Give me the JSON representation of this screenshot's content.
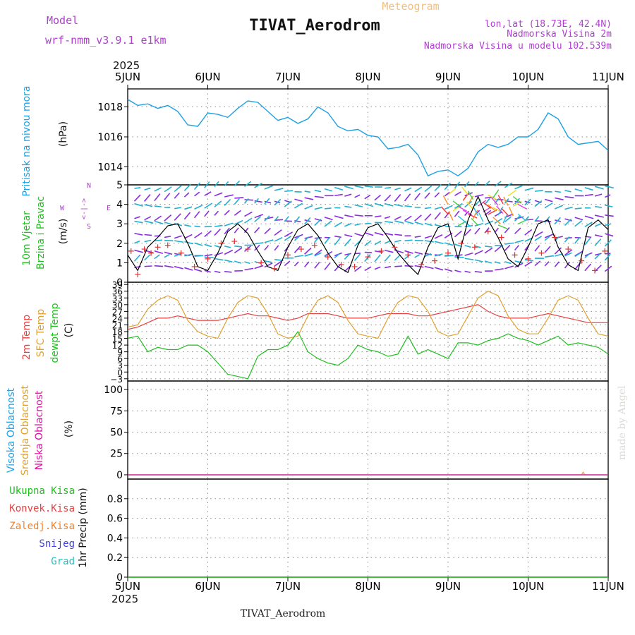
{
  "header": {
    "title": "TIVAT_Aerodrom",
    "subtitle": "Meteogram",
    "model_label": "Model",
    "model_name": "wrf-nmm_v3.9.1  e1km",
    "lonlat": "lon,lat (18.73E, 42.4N)",
    "elevation": "Nadmorska Visina 2m",
    "model_elevation": "Nadmorska Visina u modelu 102.539m",
    "year_top": "2025",
    "year_bottom": "2025",
    "footer_title": "TIVAT_Aerodrom",
    "watermark": "made by Angel"
  },
  "colors": {
    "pressure": "#1ea0e6",
    "temp2m": "#e84040",
    "sfc_temp": "#e0a030",
    "dewpoint": "#20c020",
    "gust": "#000000",
    "wind_marker": "#e03030",
    "cloud_high": "#1ea0e6",
    "cloud_mid": "#e0a030",
    "cloud_low": "#e010a0",
    "precip_total": "#20c020",
    "precip_conv": "#e84040",
    "precip_frz": "#f08030",
    "snow": "#4040e0",
    "graupel": "#20c0c0",
    "header_purple": "#b040d0",
    "subtitle_orange": "#f0c080"
  },
  "chart_data": [
    {
      "type": "line",
      "panel": "pressure",
      "ylabel": "(hPa)",
      "side_labels": [
        "Pritisak na nivou mora"
      ],
      "x_ticks": [
        "5JUN",
        "6JUN",
        "7JUN",
        "8JUN",
        "9JUN",
        "10JUN",
        "11JUN"
      ],
      "xlim": [
        0,
        144
      ],
      "ylim": [
        1012.8,
        1019.2
      ],
      "y_ticks": [
        1014,
        1016,
        1018
      ],
      "grid": true,
      "series": [
        {
          "x": [
            0,
            3,
            6,
            9,
            12,
            15,
            18,
            21,
            24,
            27,
            30,
            33,
            36,
            39,
            42,
            45,
            48,
            51,
            54,
            57,
            60,
            63,
            66,
            69,
            72,
            75,
            78,
            81,
            84,
            87,
            90,
            93,
            96,
            99,
            102,
            105,
            108,
            111,
            114,
            117,
            120,
            123,
            126,
            129,
            132,
            135,
            138,
            141,
            144
          ],
          "values": [
            1018.5,
            1018.1,
            1018.2,
            1017.9,
            1018.1,
            1017.7,
            1016.8,
            1016.7,
            1017.6,
            1017.5,
            1017.3,
            1017.9,
            1018.4,
            1018.3,
            1017.7,
            1017.1,
            1017.3,
            1016.9,
            1017.2,
            1018.0,
            1017.6,
            1016.7,
            1016.4,
            1016.5,
            1016.1,
            1016.0,
            1015.2,
            1015.3,
            1015.5,
            1014.8,
            1013.4,
            1013.7,
            1013.8,
            1013.4,
            1013.9,
            1015.0,
            1015.5,
            1015.3,
            1015.5,
            1016.0,
            1016.0,
            1016.5,
            1017.6,
            1017.2,
            1016.0,
            1015.5,
            1015.6,
            1015.7,
            1015.1
          ]
        }
      ]
    },
    {
      "type": "line",
      "panel": "wind",
      "ylabel": "(m/s)",
      "side_labels": [
        "10m Vjetar",
        "Brzina i Pravac"
      ],
      "compass_labels": {
        "north": "N",
        "south": "S",
        "east": "E",
        "west": "W",
        "arrows": "<-|->"
      },
      "xlim": [
        0,
        144
      ],
      "ylim": [
        0,
        5
      ],
      "y_ticks": [
        0,
        1,
        2,
        3,
        4,
        5
      ],
      "grid": true,
      "series": [
        {
          "x": [
            0,
            3,
            6,
            9,
            12,
            15,
            18,
            21,
            24,
            27,
            30,
            33,
            36,
            39,
            42,
            45,
            48,
            51,
            54,
            57,
            60,
            63,
            66,
            69,
            72,
            75,
            78,
            81,
            84,
            87,
            90,
            93,
            96,
            99,
            102,
            105,
            108,
            111,
            114,
            117,
            120,
            123,
            126,
            129,
            132,
            135,
            138,
            141,
            144
          ],
          "values": [
            1.4,
            0.6,
            1.8,
            2.3,
            2.9,
            3.0,
            2.0,
            0.8,
            0.6,
            1.5,
            2.6,
            3.0,
            2.5,
            1.6,
            0.8,
            0.6,
            1.8,
            2.7,
            3.0,
            2.4,
            1.5,
            0.8,
            0.5,
            1.9,
            2.8,
            3.0,
            2.3,
            1.5,
            0.9,
            0.4,
            1.8,
            2.8,
            3.0,
            1.2,
            3.2,
            4.4,
            3.2,
            2.3,
            1.2,
            0.8,
            1.8,
            3.0,
            3.2,
            1.8,
            0.9,
            0.6,
            2.8,
            3.2,
            2.7
          ]
        },
        {
          "x": [
            1,
            3,
            5,
            7,
            9,
            12,
            16,
            20,
            24,
            28,
            32,
            36,
            40,
            44,
            48,
            52,
            56,
            60,
            64,
            68,
            72,
            76,
            80,
            84,
            88,
            92,
            96,
            100,
            104,
            108,
            112,
            116,
            120,
            124,
            128,
            132,
            136,
            140,
            143
          ],
          "values": [
            1.6,
            0.4,
            1.7,
            1.5,
            1.8,
            1.9,
            1.5,
            0.8,
            1.2,
            2.0,
            2.1,
            1.7,
            1.0,
            0.7,
            1.4,
            1.7,
            1.9,
            1.3,
            0.9,
            0.8,
            1.3,
            1.6,
            1.8,
            1.4,
            0.9,
            1.1,
            1.5,
            2.0,
            1.8,
            2.6,
            2.3,
            1.4,
            1.2,
            1.5,
            2.3,
            1.7,
            1.1,
            0.6,
            1.6
          ]
        }
      ]
    },
    {
      "type": "line",
      "panel": "temperature",
      "ylabel": "(C)",
      "series_labels": [
        "2m Temp",
        "SFC Temp",
        "dewpt Temp"
      ],
      "xlim": [
        0,
        144
      ],
      "ylim": [
        -4,
        40
      ],
      "y_ticks": [
        -3,
        0,
        3,
        6,
        9,
        12,
        15,
        18,
        21,
        24,
        27,
        30,
        33,
        36,
        39
      ],
      "grid": true,
      "series": [
        {
          "x": [
            0,
            3,
            6,
            9,
            12,
            15,
            18,
            21,
            24,
            27,
            30,
            33,
            36,
            39,
            42,
            45,
            48,
            51,
            54,
            57,
            60,
            63,
            66,
            69,
            72,
            75,
            78,
            81,
            84,
            87,
            90,
            93,
            96,
            99,
            102,
            105,
            108,
            111,
            114,
            117,
            120,
            123,
            126,
            129,
            132,
            135,
            138,
            141,
            144
          ],
          "values": [
            19,
            20,
            22,
            24,
            24,
            25,
            24,
            23,
            23,
            23,
            24,
            25,
            26,
            25,
            25,
            24,
            23,
            24,
            26,
            26,
            26,
            25,
            24,
            24,
            24,
            25,
            26,
            26,
            26,
            25,
            25,
            26,
            27,
            28,
            29,
            30,
            27,
            25,
            24,
            24,
            24,
            25,
            26,
            25,
            24,
            23,
            22,
            22,
            22
          ]
        },
        {
          "x": [
            0,
            3,
            6,
            9,
            12,
            15,
            18,
            21,
            24,
            27,
            30,
            33,
            36,
            39,
            42,
            45,
            48,
            51,
            54,
            57,
            60,
            63,
            66,
            69,
            72,
            75,
            78,
            81,
            84,
            87,
            90,
            93,
            96,
            99,
            102,
            105,
            108,
            111,
            114,
            117,
            120,
            123,
            126,
            129,
            132,
            135,
            138,
            141,
            144
          ],
          "values": [
            20,
            21,
            28,
            32,
            34,
            32,
            23,
            18,
            16,
            15,
            24,
            31,
            34,
            33,
            26,
            17,
            15,
            16,
            25,
            32,
            34,
            31,
            23,
            17,
            16,
            15,
            24,
            31,
            34,
            33,
            27,
            18,
            16,
            17,
            25,
            33,
            36,
            34,
            25,
            19,
            17,
            17,
            24,
            32,
            34,
            32,
            24,
            17,
            16
          ]
        },
        {
          "x": [
            0,
            3,
            6,
            9,
            12,
            15,
            18,
            21,
            24,
            27,
            30,
            33,
            36,
            39,
            42,
            45,
            48,
            51,
            54,
            57,
            60,
            63,
            66,
            69,
            72,
            75,
            78,
            81,
            84,
            87,
            90,
            93,
            96,
            99,
            102,
            105,
            108,
            111,
            114,
            117,
            120,
            123,
            126,
            129,
            132,
            135,
            138,
            141,
            144
          ],
          "values": [
            15,
            16,
            9,
            11,
            10,
            10,
            12,
            12,
            9,
            4,
            -1,
            -2,
            -3,
            7,
            10,
            10,
            12,
            18,
            9,
            6,
            4,
            3,
            6,
            12,
            10,
            9,
            7,
            8,
            16,
            8,
            10,
            8,
            6,
            13,
            13,
            12,
            14,
            15,
            17,
            15,
            14,
            12,
            14,
            16,
            12,
            13,
            12,
            11,
            8
          ]
        }
      ]
    },
    {
      "type": "line",
      "panel": "clouds",
      "ylabel": "(%)",
      "series_labels": [
        "Visoka Oblacnost",
        "Srednja Oblacnost",
        "Niska Oblacnost"
      ],
      "xlim": [
        0,
        144
      ],
      "ylim": [
        -5,
        110
      ],
      "y_ticks": [
        0,
        25,
        50,
        75,
        100
      ],
      "grid": true,
      "series": [
        {
          "x": [
            0,
            144
          ],
          "values": [
            0,
            0
          ]
        },
        {
          "x": [
            0,
            136,
            136.5,
            137,
            144
          ],
          "values": [
            0,
            0,
            3,
            0,
            0
          ]
        },
        {
          "x": [
            0,
            144
          ],
          "values": [
            0,
            0
          ]
        }
      ]
    },
    {
      "type": "line",
      "panel": "precip",
      "ylabel": "1hr Precip (mm)",
      "series_labels": [
        "Ukupna Kisa",
        "Konvek.Kisa",
        "Zaledj.Kisa",
        "Snijeg",
        "Grad"
      ],
      "xlim": [
        0,
        144
      ],
      "ylim": [
        0,
        1
      ],
      "y_ticks": [
        0,
        0.2,
        0.4,
        0.6,
        0.8
      ],
      "grid": true,
      "x_ticks": [
        "5JUN",
        "6JUN",
        "7JUN",
        "8JUN",
        "9JUN",
        "10JUN",
        "11JUN"
      ],
      "series": [
        {
          "x": [
            0,
            144
          ],
          "values": [
            0,
            0
          ]
        }
      ]
    }
  ]
}
